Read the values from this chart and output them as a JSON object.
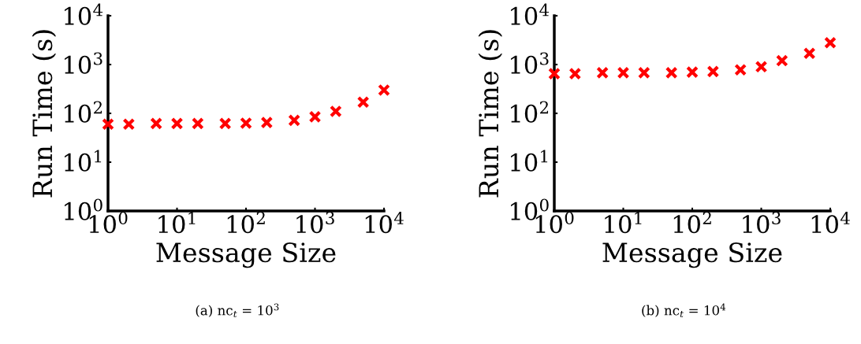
{
  "chart_data": [
    {
      "type": "scatter",
      "xlabel": "Message Size",
      "ylabel": "Run Time (s)",
      "log": "xy",
      "marker": "cross",
      "grid": false,
      "annotations": [
        "(a) nc$_{t}$ = 10$^{3}$"
      ],
      "x": [
        1,
        2,
        5,
        10,
        20,
        50,
        100,
        200,
        500,
        1000,
        2000,
        5000,
        10000
      ],
      "series": [
        {
          "color": "#ff0000",
          "values": [
            60,
            60,
            62,
            62,
            62,
            62,
            63,
            65,
            72,
            85,
            110,
            170,
            300
          ]
        }
      ],
      "xlim": [
        1,
        10000
      ],
      "ylim": [
        1,
        10000
      ],
      "xticks": [
        {
          "value": 1,
          "label": "10$^{0}$"
        },
        {
          "value": 10,
          "label": "10$^{1}$"
        },
        {
          "value": 100,
          "label": "10$^{2}$"
        },
        {
          "value": 1000,
          "label": "10$^{3}$"
        },
        {
          "value": 10000,
          "label": "10$^{4}$"
        }
      ],
      "yticks": [
        {
          "value": 1,
          "label": "10$^{0}$"
        },
        {
          "value": 10,
          "label": "10$^{1}$"
        },
        {
          "value": 100,
          "label": "10$^{2}$"
        },
        {
          "value": 1000,
          "label": "10$^{3}$"
        },
        {
          "value": 10000,
          "label": "10$^{4}$"
        }
      ]
    },
    {
      "type": "scatter",
      "xlabel": "Message Size",
      "ylabel": "Run Time (s)",
      "log": "xy",
      "marker": "cross",
      "grid": false,
      "annotations": [
        "(b) nc$_{t}$ = 10$^{4}$"
      ],
      "x": [
        1,
        2,
        5,
        10,
        20,
        50,
        100,
        200,
        500,
        1000,
        2000,
        5000,
        10000
      ],
      "series": [
        {
          "color": "#ff0000",
          "values": [
            650,
            650,
            680,
            680,
            680,
            680,
            700,
            720,
            780,
            900,
            1200,
            1700,
            2800
          ]
        }
      ],
      "xlim": [
        1,
        10000
      ],
      "ylim": [
        1,
        10000
      ],
      "xticks": [
        {
          "value": 1,
          "label": "10$^{0}$"
        },
        {
          "value": 10,
          "label": "10$^{1}$"
        },
        {
          "value": 100,
          "label": "10$^{2}$"
        },
        {
          "value": 1000,
          "label": "10$^{3}$"
        },
        {
          "value": 10000,
          "label": "10$^{4}$"
        }
      ],
      "yticks": [
        {
          "value": 1,
          "label": "10$^{0}$"
        },
        {
          "value": 10,
          "label": "10$^{1}$"
        },
        {
          "value": 100,
          "label": "10$^{2}$"
        },
        {
          "value": 1000,
          "label": "10$^{3}$"
        },
        {
          "value": 10000,
          "label": "10$^{4}$"
        }
      ]
    }
  ]
}
